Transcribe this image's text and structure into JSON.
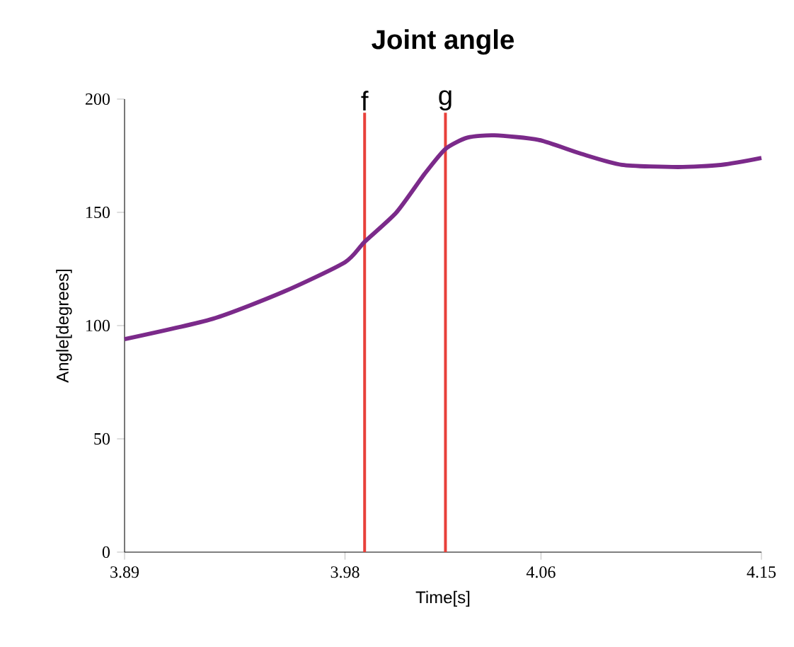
{
  "chart_data": {
    "type": "line",
    "title": "Joint angle",
    "xlabel": "Time[s]",
    "ylabel": "Angle[degrees]",
    "x": [
      3.89,
      3.926,
      3.955,
      3.98,
      3.988,
      4.001,
      4.0125,
      4.021,
      4.03,
      4.041,
      4.059,
      4.076,
      4.093,
      4.116,
      4.134,
      4.15
    ],
    "series": [
      {
        "color": "#7b2a8a",
        "values": [
          94,
          103,
          115,
          128,
          137,
          150,
          167,
          178,
          183,
          184,
          182,
          176,
          171,
          170,
          171,
          174
        ]
      }
    ],
    "xlim": [
      3.89,
      4.15
    ],
    "ylim": [
      0,
      200
    ],
    "xticks": [
      3.89,
      3.98,
      4.06,
      4.15
    ],
    "yticks": [
      0,
      50,
      100,
      150,
      200
    ],
    "ref_lines": [
      {
        "axis": "x",
        "value": 3.988,
        "label": "f",
        "color": "#e8403a"
      },
      {
        "axis": "x",
        "value": 4.021,
        "label": "g",
        "color": "#e8403a"
      }
    ],
    "grid": false,
    "marker": "none",
    "line_style": "solid"
  }
}
